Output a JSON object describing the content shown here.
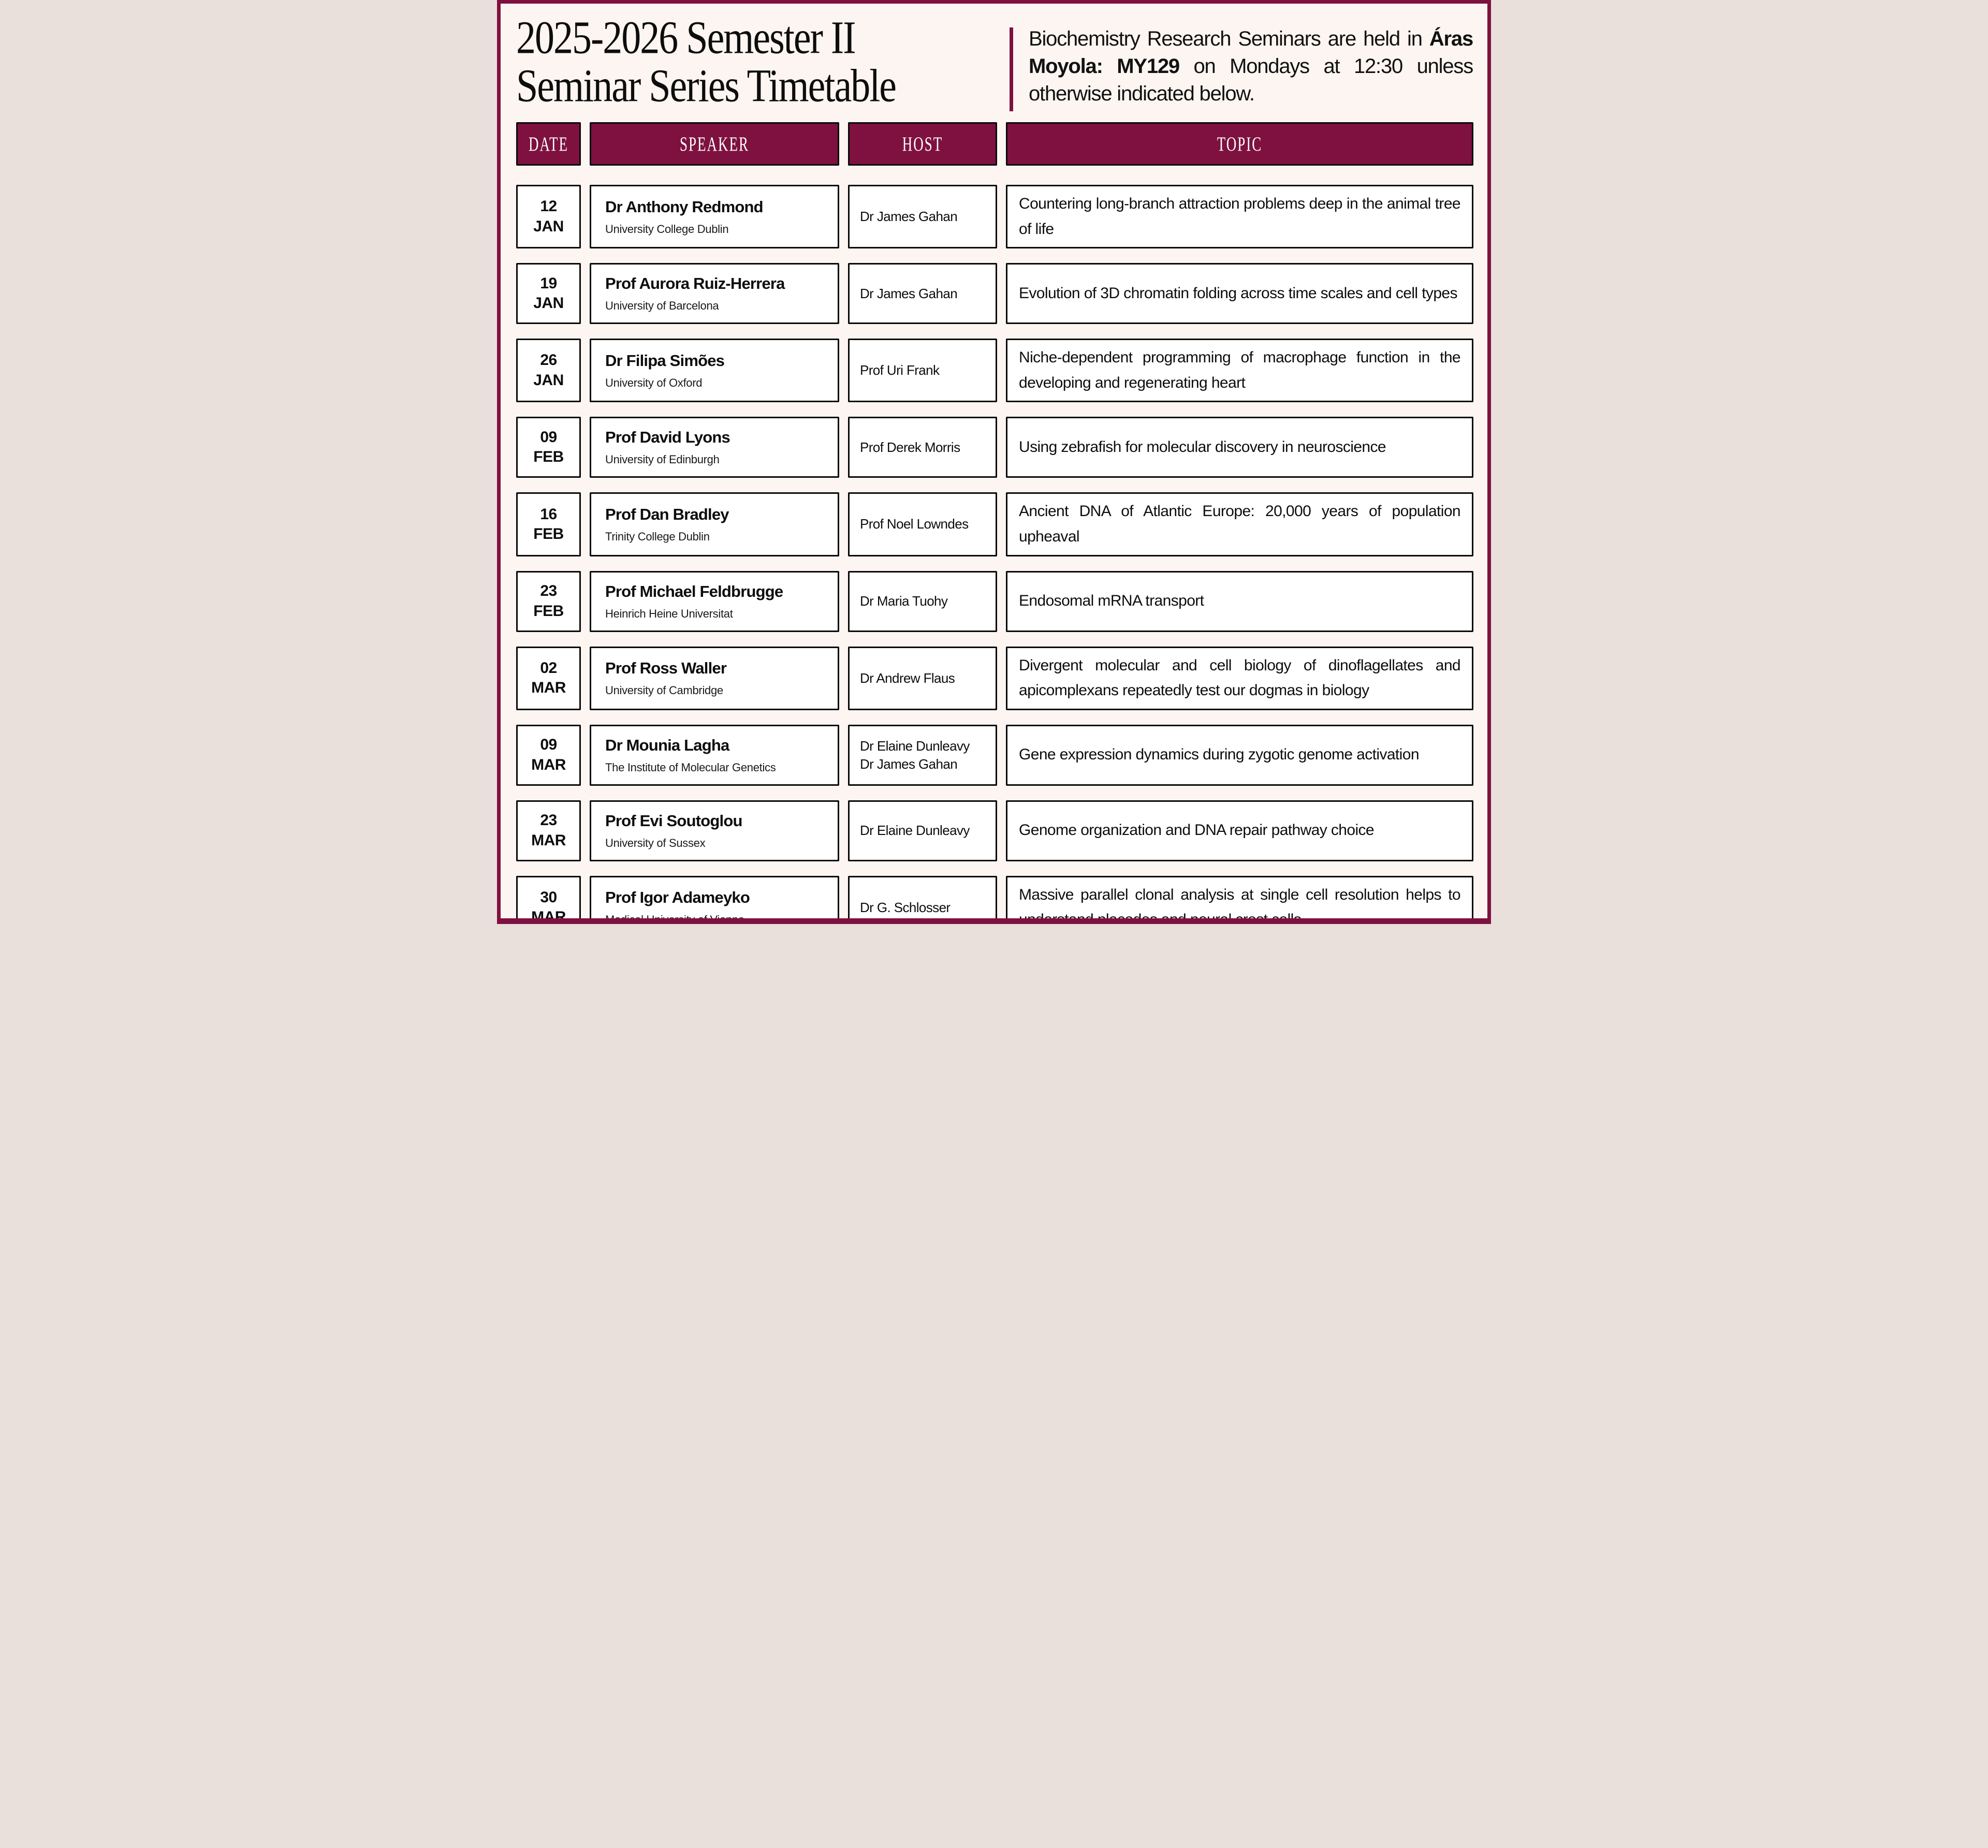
{
  "title": {
    "line1": "2025-2026 Semester II",
    "line2": "Seminar Series Timetable"
  },
  "intro": {
    "pre": "Biochemistry Research Seminars are held in ",
    "bold": "Áras Moyola: MY129",
    "post": " on Mondays at 12:30 unless otherwise indicated below."
  },
  "table": {
    "headers": [
      "DATE",
      "SPEAKER",
      "HOST",
      "TOPIC"
    ],
    "rows": [
      {
        "date_day": "12",
        "date_month": "JAN",
        "speaker": "Dr Anthony Redmond",
        "affiliation": "University College Dublin",
        "hosts": [
          "Dr James Gahan"
        ],
        "topic": "Countering long-branch attraction problems deep in the animal tree of life"
      },
      {
        "date_day": "19",
        "date_month": "JAN",
        "speaker": "Prof Aurora Ruiz-Herrera",
        "affiliation": "University of Barcelona",
        "hosts": [
          "Dr James Gahan"
        ],
        "topic": "Evolution of 3D chromatin folding across time scales and cell types"
      },
      {
        "date_day": "26",
        "date_month": "JAN",
        "speaker": "Dr Filipa Simões",
        "affiliation": "University of Oxford",
        "hosts": [
          "Prof Uri Frank"
        ],
        "topic": "Niche-dependent programming of macrophage function in the developing and regenerating heart"
      },
      {
        "date_day": "09",
        "date_month": "FEB",
        "speaker": "Prof David Lyons",
        "affiliation": "University of Edinburgh",
        "hosts": [
          "Prof Derek Morris"
        ],
        "topic": "Using zebrafish for molecular discovery in neuroscience"
      },
      {
        "date_day": "16",
        "date_month": "FEB",
        "speaker": "Prof Dan Bradley",
        "affiliation": "Trinity College Dublin",
        "hosts": [
          "Prof Noel Lowndes"
        ],
        "topic": "Ancient DNA of Atlantic Europe: 20,000 years of population upheaval"
      },
      {
        "date_day": "23",
        "date_month": "FEB",
        "speaker": "Prof Michael Feldbrugge",
        "affiliation": "Heinrich Heine Universitat",
        "hosts": [
          "Dr Maria Tuohy"
        ],
        "topic": "Endosomal mRNA transport"
      },
      {
        "date_day": "02",
        "date_month": "MAR",
        "speaker": "Prof Ross Waller",
        "affiliation": "University of Cambridge",
        "hosts": [
          "Dr Andrew Flaus"
        ],
        "topic": "Divergent molecular and cell biology of dinoflagellates and apicomplexans repeatedly test our dogmas in biology"
      },
      {
        "date_day": "09",
        "date_month": "MAR",
        "speaker": "Dr Mounia Lagha",
        "affiliation": "The Institute of Molecular Genetics",
        "hosts": [
          "Dr Elaine Dunleavy",
          "Dr James Gahan"
        ],
        "topic": "Gene expression dynamics during zygotic genome activation"
      },
      {
        "date_day": "23",
        "date_month": "MAR",
        "speaker": "Prof Evi Soutoglou",
        "affiliation": "University of Sussex",
        "hosts": [
          "Dr Elaine Dunleavy"
        ],
        "topic": "Genome organization and DNA repair pathway choice"
      },
      {
        "date_day": "30",
        "date_month": "MAR",
        "speaker": "Prof Igor Adameyko",
        "affiliation": "Medical University of Vienna",
        "hosts": [
          "Dr G. Schlosser"
        ],
        "topic": "Massive parallel clonal analysis at single cell resolution helps to understand placodes and neural crest cells"
      }
    ]
  },
  "colors": {
    "maroon": "#7E1140",
    "page_background": "#FDF5F1",
    "cell_background": "#FFFFFF",
    "cell_border": "#0A0A0A"
  }
}
